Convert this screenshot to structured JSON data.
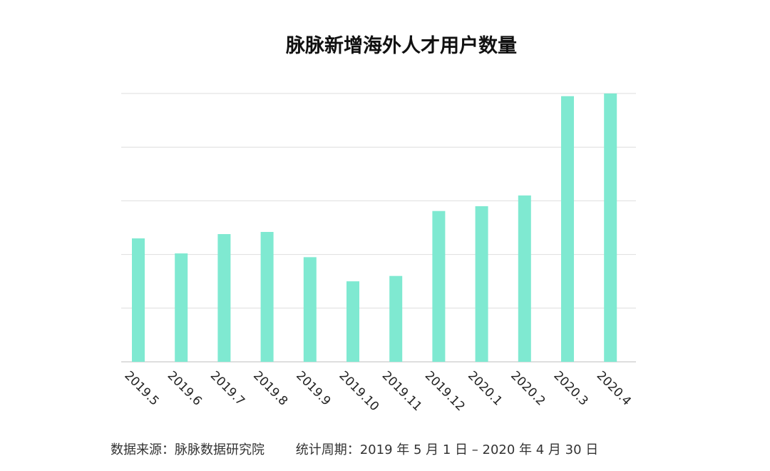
{
  "chart_data": {
    "type": "bar",
    "title": "脉脉新增海外人才用户数量",
    "categories": [
      "2019.5",
      "2019.6",
      "2019.7",
      "2019.8",
      "2019.9",
      "2019.10",
      "2019.11",
      "2019.12",
      "2020.1",
      "2020.2",
      "2020.3",
      "2020.4"
    ],
    "values": [
      2.3,
      2.02,
      2.38,
      2.42,
      1.95,
      1.5,
      1.6,
      2.81,
      2.9,
      3.1,
      4.95,
      5.0
    ],
    "ylim": [
      0,
      5
    ],
    "grid": true,
    "legend": "none",
    "bar_color": "#7fe9d1",
    "xlabel": "",
    "ylabel": ""
  },
  "footer": {
    "source": "数据来源：脉脉数据研究院",
    "period": "统计周期：2019 年 5 月 1 日 – 2020 年 4 月 30 日"
  }
}
